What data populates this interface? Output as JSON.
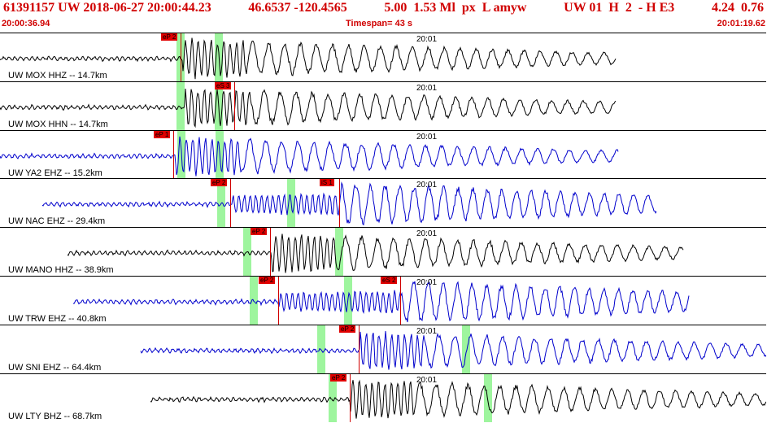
{
  "header": {
    "event_id": "61391157",
    "network": "UW",
    "date": "2018-06-27",
    "origin_time": "20:00:44.23",
    "lat": "46.6537",
    "lon": "-120.4565",
    "depth": "5.00",
    "magnitude": "1.53",
    "mag_type": "Ml",
    "event_type": "px",
    "etype_code": "L",
    "author": "amyw",
    "net_code": "UW 01",
    "quality": "H",
    "nph": "2",
    "extra": "- H E3",
    "num1": "4.24",
    "num2": "0.76"
  },
  "subheader": {
    "start_time": "20:00:36.94",
    "timespan": "Timespan=  43 s",
    "end_time": "20:01:19.62"
  },
  "colors": {
    "header": "#d00000",
    "trace_black": "#000000",
    "trace_blue": "#0000cc",
    "pick": "#e00000",
    "window": "#9ef59e"
  },
  "traces": [
    {
      "label": "UW MOX HHZ -- 14.7km",
      "time": "20:01",
      "picks": [
        "eP 2"
      ]
    },
    {
      "label": "UW MOX HHN -- 14.7km",
      "time": "20:01",
      "picks": [
        "eS 3"
      ]
    },
    {
      "label": "UW YA2 EHZ -- 15.2km",
      "time": "20:01",
      "picks": [
        "eP 1"
      ]
    },
    {
      "label": "UW NAC EHZ -- 29.4km",
      "time": "20:01",
      "picks": [
        "eP 2",
        "iS 1"
      ]
    },
    {
      "label": "UW MANO HHZ -- 38.9km",
      "time": "20:01",
      "picks": [
        "eP 2"
      ]
    },
    {
      "label": "UW TRW EHZ -- 40.8km",
      "time": "20:01",
      "picks": [
        "eP 2",
        "eS 2"
      ]
    },
    {
      "label": "UW SNI EHZ -- 64.4km",
      "time": "20:01",
      "picks": [
        "eP 2"
      ]
    },
    {
      "label": "UW LTY BHZ -- 68.7km",
      "time": "20:01",
      "picks": [
        "eP 2"
      ]
    }
  ]
}
